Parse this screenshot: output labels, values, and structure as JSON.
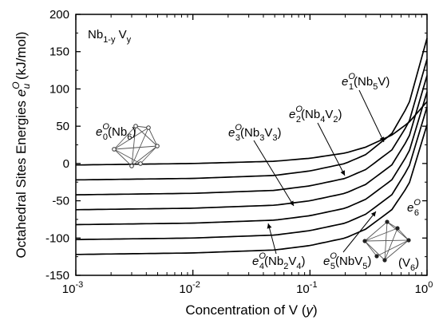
{
  "chart_data": {
    "type": "line",
    "title": "",
    "system_label": {
      "main": "Nb",
      "sub1": "1-y",
      "mid": " V",
      "sub2": "y"
    },
    "xlabel": "Concentration of V",
    "xlabel_var": "y",
    "ylabel": "Octahedral Sites Energies",
    "ylabel_symbol": {
      "base": "e",
      "sup": "O",
      "sub": "u"
    },
    "ylabel_unit": "(kJ/mol)",
    "x_scale": "log",
    "xlim": [
      0.001,
      1
    ],
    "ylim": [
      -150,
      200
    ],
    "x_ticks": [
      {
        "base": "10",
        "exp": "-3"
      },
      {
        "base": "10",
        "exp": "-2"
      },
      {
        "base": "10",
        "exp": "-1"
      },
      {
        "base": "10",
        "exp": "0"
      }
    ],
    "y_ticks": [
      -150,
      -100,
      -50,
      0,
      50,
      100,
      150,
      200
    ],
    "grid": false,
    "legend": "none",
    "series": [
      {
        "label": {
          "e": "e",
          "sup": "O",
          "sub": "0",
          "rest": "(Nb6)"
        },
        "x": [
          0.001,
          0.01,
          0.05,
          0.1,
          0.2,
          0.3,
          0.5,
          0.7,
          1.0
        ],
        "y": [
          -2,
          0,
          3,
          7,
          14,
          22,
          38,
          55,
          83
        ]
      },
      {
        "label": {
          "e": "e",
          "sup": "O",
          "sub": "1",
          "rest": "(Nb5V)"
        },
        "x": [
          0.001,
          0.01,
          0.05,
          0.1,
          0.2,
          0.3,
          0.5,
          0.7,
          1.0
        ],
        "y": [
          -22,
          -20,
          -16,
          -10,
          0,
          12,
          40,
          80,
          168
        ]
      },
      {
        "label": {
          "e": "e",
          "sup": "O",
          "sub": "2",
          "rest": "(Nb4V2)"
        },
        "x": [
          0.001,
          0.01,
          0.05,
          0.1,
          0.2,
          0.3,
          0.5,
          0.7,
          1.0
        ],
        "y": [
          -42,
          -40,
          -36,
          -30,
          -20,
          -8,
          18,
          55,
          140
        ]
      },
      {
        "label": {
          "e": "e",
          "sup": "O",
          "sub": "3",
          "rest": "(Nb3V3)"
        },
        "x": [
          0.001,
          0.01,
          0.05,
          0.1,
          0.2,
          0.3,
          0.5,
          0.7,
          1.0
        ],
        "y": [
          -62,
          -60,
          -56,
          -50,
          -40,
          -28,
          -2,
          35,
          118
        ]
      },
      {
        "label": {
          "e": "e",
          "sup": "O",
          "sub": "4",
          "rest": "(Nb2V4)"
        },
        "x": [
          0.001,
          0.01,
          0.05,
          0.1,
          0.2,
          0.3,
          0.5,
          0.7,
          1.0
        ],
        "y": [
          -82,
          -80,
          -76,
          -70,
          -60,
          -48,
          -22,
          15,
          96
        ]
      },
      {
        "label": {
          "e": "e",
          "sup": "O",
          "sub": "5",
          "rest": "(NbV5)"
        },
        "x": [
          0.001,
          0.01,
          0.05,
          0.1,
          0.2,
          0.3,
          0.5,
          0.7,
          1.0
        ],
        "y": [
          -102,
          -100,
          -96,
          -90,
          -80,
          -68,
          -42,
          -5,
          76
        ]
      },
      {
        "label": {
          "e": "e",
          "sup": "O",
          "sub": "6",
          "rest": "(V6)"
        },
        "x": [
          0.001,
          0.01,
          0.05,
          0.1,
          0.2,
          0.3,
          0.5,
          0.7,
          1.0
        ],
        "y": [
          -122,
          -120,
          -116,
          -110,
          -100,
          -88,
          -62,
          -28,
          52
        ]
      }
    ],
    "annotations": [
      {
        "text_base": "e",
        "sup": "O",
        "sub": "1",
        "formula": [
          [
            "(Nb",
            ""
          ],
          [
            "5",
            "sub"
          ],
          [
            "V)",
            ""
          ]
        ],
        "series": 1
      },
      {
        "text_base": "e",
        "sup": "O",
        "sub": "2",
        "formula": [
          [
            "(Nb",
            ""
          ],
          [
            "4",
            "sub"
          ],
          [
            "V",
            ""
          ],
          [
            "2",
            "sub"
          ],
          [
            ")",
            ""
          ]
        ],
        "series": 2
      },
      {
        "text_base": "e",
        "sup": "O",
        "sub": "3",
        "formula": [
          [
            "(Nb",
            ""
          ],
          [
            "3",
            "sub"
          ],
          [
            "V",
            ""
          ],
          [
            "3",
            "sub"
          ],
          [
            ")",
            ""
          ]
        ],
        "series": 3
      },
      {
        "text_base": "e",
        "sup": "O",
        "sub": "4",
        "formula": [
          [
            "(Nb",
            ""
          ],
          [
            "2",
            "sub"
          ],
          [
            "V",
            ""
          ],
          [
            "4",
            "sub"
          ],
          [
            ")",
            ""
          ]
        ],
        "series": 4
      },
      {
        "text_base": "e",
        "sup": "O",
        "sub": "5",
        "formula": [
          [
            "(NbV",
            ""
          ],
          [
            "5",
            "sub"
          ],
          [
            ")",
            ""
          ]
        ],
        "series": 5
      },
      {
        "text_base": "e",
        "sup": "O",
        "sub": "0",
        "formula": [
          [
            "(Nb",
            ""
          ],
          [
            "6",
            "sub"
          ],
          [
            ")",
            ""
          ]
        ],
        "series": 0
      },
      {
        "text_base": "e",
        "sup": "O",
        "sub": "6",
        "formula": [
          [
            "(V",
            ""
          ],
          [
            "6",
            "sub"
          ],
          [
            ")",
            ""
          ]
        ],
        "series": 6
      }
    ],
    "inset_icons": [
      "octahedron-nb-icon",
      "octahedron-v-icon"
    ]
  }
}
